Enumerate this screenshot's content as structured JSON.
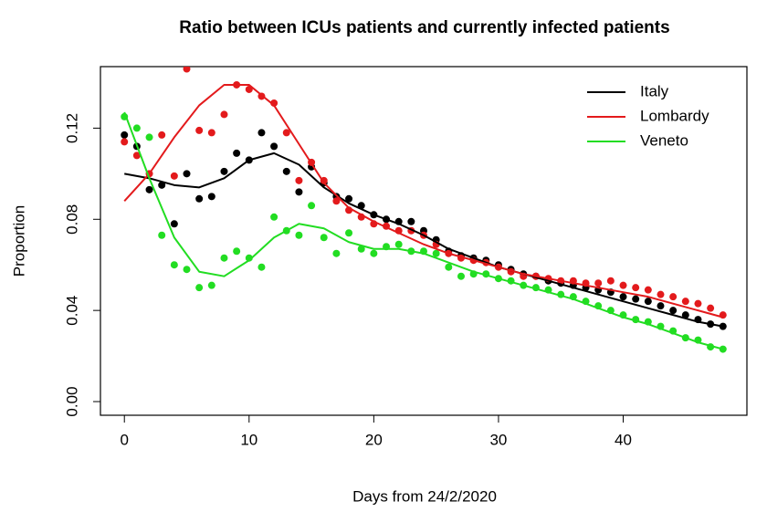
{
  "chart_data": {
    "type": "scatter",
    "title": "Ratio between ICUs patients and currently infected patients",
    "xlabel": "Days from 24/2/2020",
    "ylabel": "Proportion",
    "x": [
      0,
      1,
      2,
      3,
      4,
      5,
      6,
      7,
      8,
      9,
      10,
      11,
      12,
      13,
      14,
      15,
      16,
      17,
      18,
      19,
      20,
      21,
      22,
      23,
      24,
      25,
      26,
      27,
      28,
      29,
      30,
      31,
      32,
      33,
      34,
      35,
      36,
      37,
      38,
      39,
      40,
      41,
      42,
      43,
      44,
      45,
      46,
      47,
      48
    ],
    "fit_x": [
      0,
      2,
      4,
      6,
      8,
      10,
      12,
      14,
      16,
      18,
      20,
      22,
      24,
      26,
      28,
      30,
      32,
      34,
      36,
      38,
      40,
      42,
      44,
      46,
      48
    ],
    "series": [
      {
        "name": "Italy",
        "color": "#000000",
        "values": [
          0.117,
          0.112,
          0.093,
          0.095,
          0.078,
          0.1,
          0.089,
          0.09,
          0.101,
          0.109,
          0.106,
          0.118,
          0.112,
          0.101,
          0.092,
          0.103,
          0.096,
          0.09,
          0.089,
          0.086,
          0.082,
          0.08,
          0.079,
          0.079,
          0.075,
          0.071,
          0.066,
          0.064,
          0.063,
          0.062,
          0.06,
          0.058,
          0.056,
          0.055,
          0.053,
          0.052,
          0.051,
          0.05,
          0.049,
          0.048,
          0.046,
          0.045,
          0.044,
          0.042,
          0.04,
          0.038,
          0.036,
          0.034,
          0.033
        ],
        "fit": [
          0.1,
          0.098,
          0.095,
          0.094,
          0.098,
          0.106,
          0.109,
          0.104,
          0.094,
          0.087,
          0.082,
          0.078,
          0.073,
          0.067,
          0.063,
          0.059,
          0.056,
          0.053,
          0.05,
          0.047,
          0.044,
          0.041,
          0.038,
          0.035,
          0.033
        ]
      },
      {
        "name": "Lombardy",
        "color": "#e31a1c",
        "values": [
          0.114,
          0.108,
          0.1,
          0.117,
          0.099,
          0.146,
          0.119,
          0.118,
          0.126,
          0.139,
          0.137,
          0.134,
          0.131,
          0.118,
          0.097,
          0.105,
          0.097,
          0.088,
          0.084,
          0.081,
          0.078,
          0.077,
          0.075,
          0.075,
          0.073,
          0.069,
          0.065,
          0.063,
          0.062,
          0.061,
          0.059,
          0.057,
          0.055,
          0.055,
          0.054,
          0.053,
          0.053,
          0.052,
          0.052,
          0.053,
          0.051,
          0.05,
          0.049,
          0.047,
          0.046,
          0.044,
          0.043,
          0.041,
          0.038
        ],
        "fit": [
          0.088,
          0.1,
          0.116,
          0.13,
          0.139,
          0.139,
          0.13,
          0.113,
          0.096,
          0.085,
          0.079,
          0.074,
          0.069,
          0.065,
          0.062,
          0.059,
          0.056,
          0.054,
          0.052,
          0.05,
          0.048,
          0.046,
          0.043,
          0.04,
          0.037
        ]
      },
      {
        "name": "Veneto",
        "color": "#22dd22",
        "values": [
          0.125,
          0.12,
          0.116,
          0.073,
          0.06,
          0.058,
          0.05,
          0.051,
          0.063,
          0.066,
          0.063,
          0.059,
          0.081,
          0.075,
          0.073,
          0.086,
          0.072,
          0.065,
          0.074,
          0.067,
          0.065,
          0.068,
          0.069,
          0.066,
          0.066,
          0.065,
          0.059,
          0.055,
          0.056,
          0.056,
          0.054,
          0.053,
          0.051,
          0.05,
          0.049,
          0.047,
          0.046,
          0.044,
          0.042,
          0.04,
          0.038,
          0.036,
          0.035,
          0.033,
          0.031,
          0.028,
          0.027,
          0.024,
          0.023
        ],
        "fit": [
          0.127,
          0.098,
          0.072,
          0.057,
          0.055,
          0.062,
          0.072,
          0.078,
          0.076,
          0.07,
          0.067,
          0.067,
          0.065,
          0.061,
          0.057,
          0.054,
          0.051,
          0.048,
          0.045,
          0.041,
          0.037,
          0.034,
          0.03,
          0.026,
          0.023
        ]
      }
    ],
    "xlim": [
      -1.92,
      49.92
    ],
    "ylim": [
      -0.006,
      0.147
    ],
    "xticks": [
      0,
      10,
      20,
      30,
      40
    ],
    "yticks": [
      {
        "value": 0,
        "label": "0.00"
      },
      0.04,
      0.08,
      0.12
    ],
    "legend": "topright"
  }
}
